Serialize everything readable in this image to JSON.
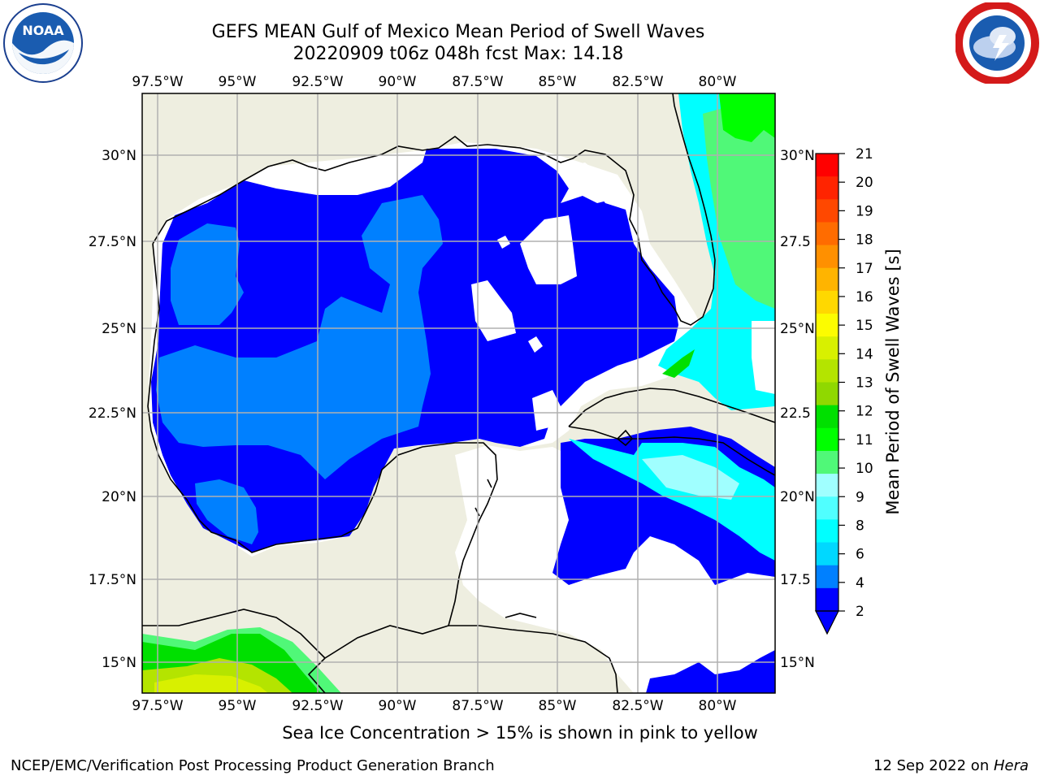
{
  "header": {
    "title_line1": "GEFS MEAN Gulf of Mexico Mean Period of Swell Waves",
    "title_line2": "20220909 t06z 048h fcst   Max: 14.18"
  },
  "logos": {
    "left": "NOAA",
    "right": "NATIONAL WEATHER SERVICE"
  },
  "map": {
    "lon_labels": [
      "97.5°W",
      "95°W",
      "92.5°W",
      "90°W",
      "87.5°W",
      "85°W",
      "82.5°W",
      "80°W"
    ],
    "lat_labels_left": [
      "30°N",
      "27.5°N",
      "25°N",
      "22.5°N",
      "20°N",
      "17.5°N",
      "15°N"
    ],
    "lat_labels_right": [
      "30°N",
      "27.5",
      "25°N",
      "22.5",
      "20°N",
      "17.5",
      "15°N"
    ],
    "colors": {
      "land": "#eeeee0",
      "ocean_deep": "#0000ff",
      "ocean_mid": "#0080ff",
      "no_data": "#ffffff",
      "grid": "#b0b0b0"
    }
  },
  "colorbar": {
    "label": "Mean Period of Swell Waves [s]",
    "ticks": [
      "21",
      "20",
      "19",
      "18",
      "17",
      "16",
      "15",
      "14",
      "13",
      "12",
      "11",
      "10",
      "9",
      "8",
      "6",
      "4",
      "2"
    ],
    "colors": [
      "#ff0000",
      "#ff2400",
      "#ff4800",
      "#ff6c00",
      "#ff9000",
      "#ffb400",
      "#ffd800",
      "#fcfc00",
      "#d8f000",
      "#b4e400",
      "#90d800",
      "#00e000",
      "#00ff00",
      "#50f878",
      "#a0ffff",
      "#50ffff",
      "#00ffff",
      "#00d8ff",
      "#0080ff",
      "#0000ff"
    ]
  },
  "subtitle": "Sea Ice Concentration > 15% is shown in pink to yellow",
  "footer": {
    "left": "NCEP/EMC/Verification Post Processing Product Generation Branch",
    "right_date": "12 Sep 2022 on ",
    "right_machine": "Hera"
  }
}
